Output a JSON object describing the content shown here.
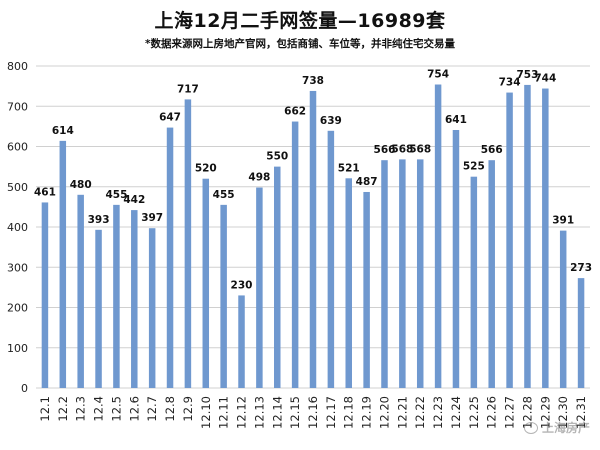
{
  "title": "上海12月二手网签量—16989套",
  "subtitle": "*数据来源网上房地产官网，包括商铺、车位等，并非纯住宅交易量",
  "watermark": "上海房产",
  "colors": {
    "bar": "#6f98cf",
    "grid": "#d0d0d0",
    "axis_text": "#222222"
  },
  "chart_data": {
    "type": "bar",
    "title": "上海12月二手网签量—16989套",
    "subtitle": "*数据来源网上房地产官网，包括商铺、车位等，并非纯住宅交易量",
    "categories": [
      "12.1",
      "12.2",
      "12.3",
      "12.4",
      "12.5",
      "12.6",
      "12.7",
      "12.8",
      "12.9",
      "12.10",
      "12.11",
      "12.12",
      "12.13",
      "12.14",
      "12.15",
      "12.16",
      "12.17",
      "12.18",
      "12.19",
      "12.20",
      "12.21",
      "12.22",
      "12.23",
      "12.24",
      "12.25",
      "12.26",
      "12.27",
      "12.28",
      "12.29",
      "12.30",
      "12.31"
    ],
    "values": [
      461,
      614,
      480,
      393,
      455,
      442,
      397,
      647,
      717,
      520,
      455,
      230,
      498,
      550,
      662,
      738,
      639,
      521,
      487,
      566,
      568,
      568,
      754,
      641,
      525,
      566,
      734,
      753,
      744,
      391,
      273
    ],
    "labels": [
      "461",
      "614",
      "480",
      "393",
      "455",
      "442",
      "397",
      "647",
      "717",
      "520",
      "455",
      "230",
      "498",
      "550",
      "662",
      "738",
      "639",
      "521",
      "487",
      "566",
      "568",
      "568",
      "754",
      "641",
      "525",
      "566",
      "734",
      "753",
      "744",
      "391",
      "273"
    ],
    "ylim": [
      0,
      800
    ],
    "yticks": [
      0,
      100,
      200,
      300,
      400,
      500,
      600,
      700,
      800
    ],
    "xlabel": "",
    "ylabel": "",
    "grid": true,
    "legend": "none"
  }
}
